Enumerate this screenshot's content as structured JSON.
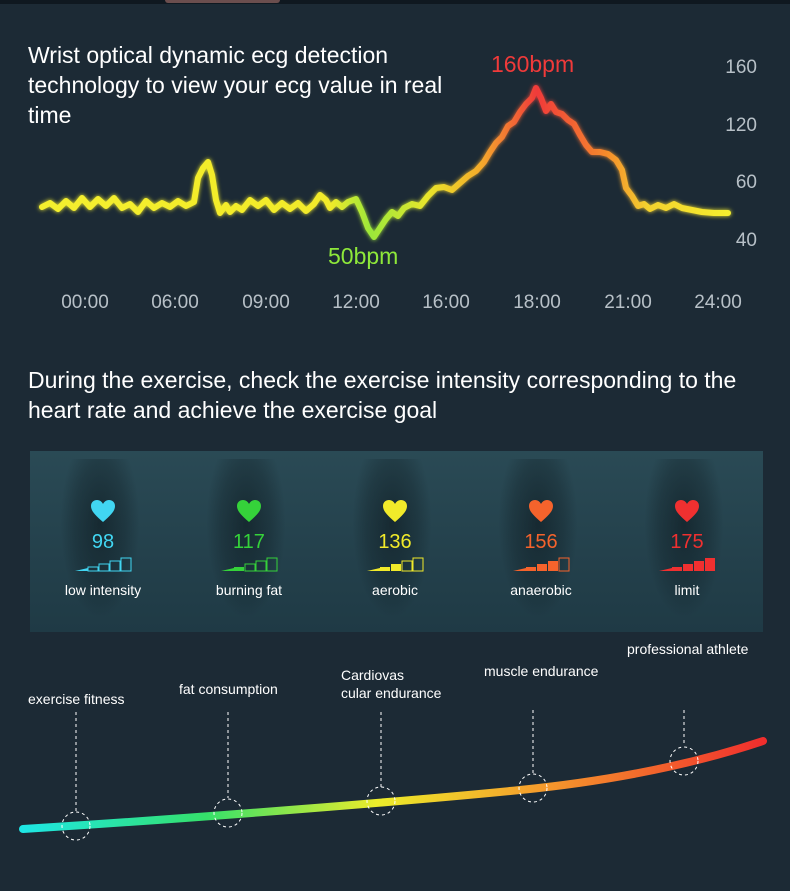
{
  "ecg": {
    "title": "Wrist optical dynamic ecg detection technology to view your ecg value in real time",
    "peak_label": "160bpm",
    "low_label": "50bpm",
    "y_ticks": [
      "160",
      "120",
      "60",
      "40"
    ],
    "x_ticks": [
      "00:00",
      "06:00",
      "09:00",
      "12:00",
      "16:00",
      "18:00",
      "21:00",
      "24:00"
    ],
    "peak_bpm": 160,
    "low_bpm": 50
  },
  "exercise": {
    "title": "During the exercise, check the exercise intensity corresponding to the heart rate and achieve the exercise goal",
    "zones": [
      {
        "value": "98",
        "label": "low intensity",
        "color": "#41d6f2",
        "level": 1
      },
      {
        "value": "117",
        "label": "burning fat",
        "color": "#35d23a",
        "level": 2
      },
      {
        "value": "136",
        "label": "aerobic",
        "color": "#f1ea2a",
        "level": 3
      },
      {
        "value": "156",
        "label": "anaerobic",
        "color": "#f5632c",
        "level": 4
      },
      {
        "value": "175",
        "label": "limit",
        "color": "#f03030",
        "level": 5
      }
    ]
  },
  "goals": [
    {
      "label": "exercise fitness"
    },
    {
      "label": "fat consumption"
    },
    {
      "label": "Cardiovas\ncular endurance"
    },
    {
      "label": "muscle endurance"
    },
    {
      "label": "professional athlete"
    }
  ],
  "colors": {
    "background": "#1c2a35",
    "peak": "#f03a3a",
    "low": "#8ee83a",
    "axis": "#b7c0c7"
  }
}
